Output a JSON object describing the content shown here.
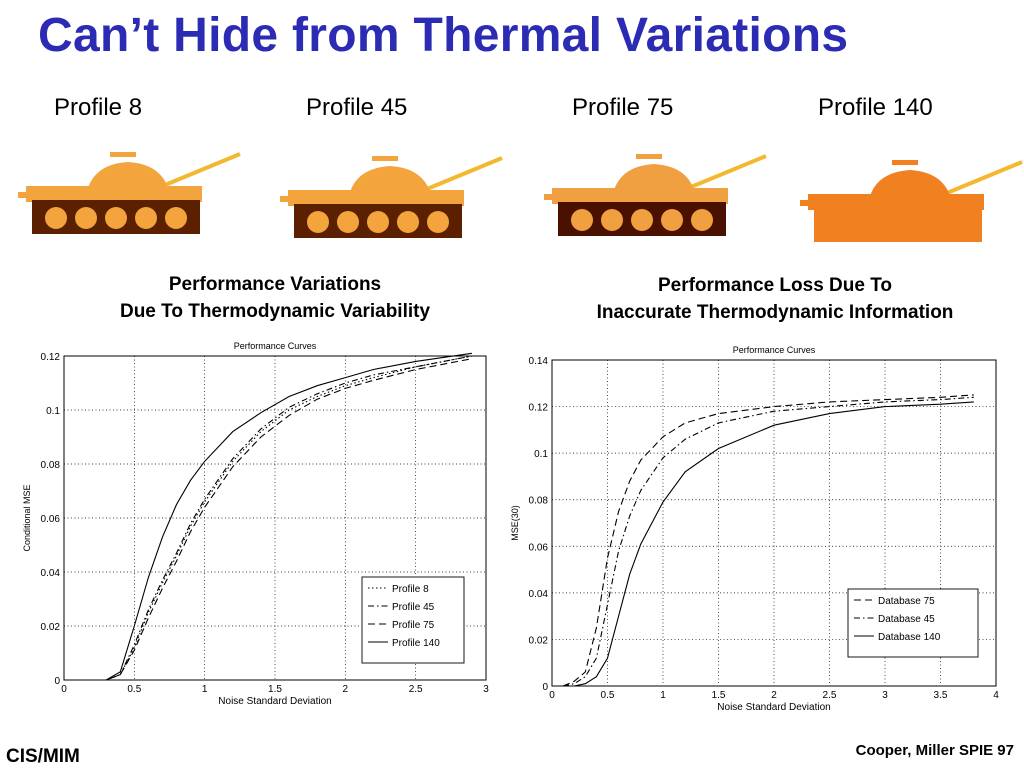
{
  "slide": {
    "title": "Can’t Hide from Thermal Variations",
    "profiles": [
      "Profile 8",
      "Profile 45",
      "Profile 75",
      "Profile 140"
    ],
    "subtitle_left_1": "Performance Variations",
    "subtitle_left_2": "Due To Thermodynamic Variability",
    "subtitle_right_1": "Performance Loss Due To",
    "subtitle_right_2": "Inaccurate Thermodynamic Information",
    "footer_left": "CIS/MIM",
    "footer_right": "Cooper, Miller  SPIE 97"
  },
  "tanks": [
    {
      "body": "#f4a43c",
      "dark": "#5a2000",
      "gun": "#f2b830"
    },
    {
      "body": "#f4a43c",
      "dark": "#5a2000",
      "gun": "#f2b830"
    },
    {
      "body": "#f0a040",
      "dark": "#4a1000",
      "gun": "#f2b830"
    },
    {
      "body": "#f08020",
      "dark": "#f08020",
      "gun": "#f2b830"
    }
  ],
  "chart_data": [
    {
      "type": "line",
      "title": "Performance Curves",
      "xlabel": "Noise Standard Deviation",
      "ylabel": "Conditional MSE",
      "xlim": [
        0,
        3
      ],
      "ylim": [
        0,
        0.12
      ],
      "xticks": [
        "0",
        "0.5",
        "1",
        "1.5",
        "2",
        "2.5",
        "3"
      ],
      "yticks": [
        "0",
        "0.02",
        "0.04",
        "0.06",
        "0.08",
        "0.1",
        "0.12"
      ],
      "grid": true,
      "legend_position": "bottom-right",
      "x": [
        0.1,
        0.3,
        0.4,
        0.5,
        0.6,
        0.7,
        0.8,
        0.9,
        1.0,
        1.2,
        1.4,
        1.6,
        1.8,
        2.0,
        2.2,
        2.5,
        2.9
      ],
      "series": [
        {
          "name": "Profile 8",
          "style": "dotted",
          "values": [
            0,
            0,
            0.002,
            0.012,
            0.025,
            0.036,
            0.046,
            0.057,
            0.066,
            0.081,
            0.092,
            0.1,
            0.105,
            0.109,
            0.112,
            0.116,
            0.12
          ]
        },
        {
          "name": "Profile 45",
          "style": "dashdot",
          "values": [
            0,
            0,
            0.002,
            0.013,
            0.026,
            0.037,
            0.047,
            0.058,
            0.067,
            0.082,
            0.093,
            0.101,
            0.106,
            0.11,
            0.113,
            0.116,
            0.12
          ]
        },
        {
          "name": "Profile 75",
          "style": "dashed",
          "values": [
            0,
            0,
            0.002,
            0.011,
            0.023,
            0.034,
            0.044,
            0.055,
            0.064,
            0.079,
            0.09,
            0.098,
            0.104,
            0.108,
            0.111,
            0.115,
            0.119
          ]
        },
        {
          "name": "Profile 140",
          "style": "solid",
          "values": [
            0,
            0,
            0.003,
            0.02,
            0.038,
            0.053,
            0.065,
            0.074,
            0.081,
            0.092,
            0.099,
            0.105,
            0.109,
            0.112,
            0.115,
            0.118,
            0.121
          ]
        }
      ]
    },
    {
      "type": "line",
      "title": "Performance Curves",
      "xlabel": "Noise Standard Deviation",
      "ylabel": "MSE(30)",
      "xlim": [
        0,
        4
      ],
      "ylim": [
        0,
        0.14
      ],
      "xticks": [
        "0",
        "0.5",
        "1",
        "1.5",
        "2",
        "2.5",
        "3",
        "3.5",
        "4"
      ],
      "yticks": [
        "0",
        "0.02",
        "0.04",
        "0.06",
        "0.08",
        "0.1",
        "0.12",
        "0.14"
      ],
      "grid": true,
      "legend_position": "bottom-right",
      "x": [
        0.1,
        0.2,
        0.3,
        0.4,
        0.5,
        0.6,
        0.7,
        0.8,
        1.0,
        1.2,
        1.5,
        2.0,
        2.5,
        3.0,
        3.5,
        3.8
      ],
      "series": [
        {
          "name": "Database 75",
          "style": "dashed",
          "values": [
            0,
            0.002,
            0.006,
            0.025,
            0.055,
            0.075,
            0.088,
            0.097,
            0.107,
            0.113,
            0.117,
            0.12,
            0.122,
            0.123,
            0.124,
            0.125
          ]
        },
        {
          "name": "Database 45",
          "style": "dashdot",
          "values": [
            0,
            0.001,
            0.004,
            0.012,
            0.035,
            0.058,
            0.073,
            0.084,
            0.098,
            0.106,
            0.113,
            0.118,
            0.12,
            0.122,
            0.123,
            0.124
          ]
        },
        {
          "name": "Database 140",
          "style": "solid",
          "values": [
            0,
            0,
            0.001,
            0.004,
            0.012,
            0.03,
            0.048,
            0.061,
            0.079,
            0.092,
            0.102,
            0.112,
            0.117,
            0.12,
            0.121,
            0.122
          ]
        }
      ]
    }
  ]
}
